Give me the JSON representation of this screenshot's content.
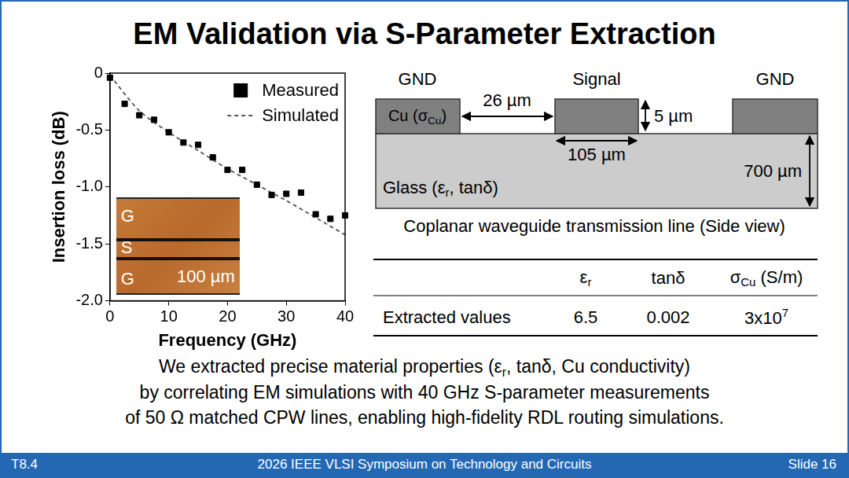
{
  "slide": {
    "title": "EM Validation via S-Parameter Extraction",
    "caption": [
      [
        "We extracted precise material properties (ε",
        {
          "sub": "r"
        },
        ", tanδ, Cu conductivity)"
      ],
      [
        "by correlating EM simulations with 40 GHz S-parameter measurements"
      ],
      [
        "of 50 Ω matched CPW lines, enabling high-fidelity RDL routing simulations."
      ]
    ],
    "footer": {
      "left": "T8.4",
      "center": "2026 IEEE VLSI Symposium on Technology and Circuits",
      "right": "Slide 16"
    }
  },
  "chart_data": {
    "type": "scatter",
    "x_label": "Frequency (GHz)",
    "y_label": "Insertion loss (dB)",
    "xlim": [
      0,
      40
    ],
    "xticks": [
      0,
      10,
      20,
      30,
      40
    ],
    "ylim": [
      -2,
      0
    ],
    "yticks": [
      {
        "value": -2,
        "label": "-2.0"
      },
      -1.5,
      {
        "value": -1,
        "label": "-1.0"
      },
      -0.5,
      0
    ],
    "grid": false,
    "legend": "upper right",
    "series": [
      {
        "name": "Measured",
        "type": "scatter",
        "marker": "square",
        "color": "#000000",
        "x": [
          0,
          2.5,
          5,
          7.5,
          10,
          12.5,
          15,
          17.5,
          20,
          22.5,
          25,
          27.5,
          30,
          32.5,
          35,
          37.5,
          40
        ],
        "values": [
          -0.04,
          -0.27,
          -0.37,
          -0.41,
          -0.52,
          -0.61,
          -0.63,
          -0.74,
          -0.85,
          -0.85,
          -0.98,
          -1.07,
          -1.06,
          -1.05,
          -1.24,
          -1.28,
          -1.25
        ]
      },
      {
        "name": "Simulated",
        "type": "line",
        "line_style": "dashed",
        "color": "#555555",
        "x": [
          0,
          5,
          10,
          15,
          20,
          25,
          30,
          35,
          40
        ],
        "values": [
          -0.02,
          -0.33,
          -0.52,
          -0.68,
          -0.84,
          -0.98,
          -1.12,
          -1.27,
          -1.42
        ]
      }
    ],
    "inset": {
      "labels": [
        "G",
        "S",
        "G"
      ],
      "scale_bar": "100 µm"
    }
  },
  "diagram": {
    "labels": [
      "GND",
      "Signal",
      "GND"
    ],
    "conductor": [
      "Cu (σ",
      {
        "sub": "Cu"
      },
      ")"
    ],
    "substrate": [
      "Glass (ε",
      {
        "sub": "r"
      },
      ", tanδ)"
    ],
    "dimensions": {
      "gap": "26 µm",
      "thickness": "5 µm",
      "width": "105 µm",
      "substrate": "700 µm"
    },
    "caption": "Coplanar waveguide transmission line (Side view)"
  },
  "table": {
    "columns": [
      [
        "ε",
        {
          "sub": "r"
        }
      ],
      "tanδ",
      [
        "σ",
        {
          "sub": "Cu"
        },
        " (S/m)"
      ]
    ],
    "rows": [
      {
        "label": "Extracted values",
        "cells": [
          "6.5",
          "0.002",
          [
            "3x10",
            {
              "sup": "7"
            }
          ]
        ]
      }
    ]
  }
}
